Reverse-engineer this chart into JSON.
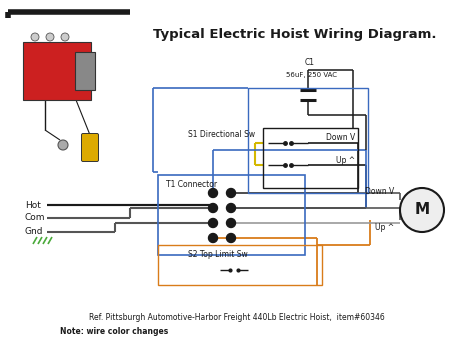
{
  "title": "Typical Electric Hoist Wiring Diagram.",
  "ref_text": "Ref. Pittsburgh Automotive-Harbor Freight 440Lb Electric Hoist,  item#60346",
  "note_text": "Note: wire color changes",
  "bg_color": "#ffffff",
  "title_fontsize": 9.5,
  "c1_label": "C1",
  "c1_sub": "56uF, 250 VAC",
  "s1_label": "S1 Directional Sw",
  "s2_label": "S2 Top Limit Sw",
  "t1_label": "T1 Connector",
  "down_v": "Down V",
  "up_v": "Up ^",
  "hot_label": "Hot",
  "com_label": "Com",
  "gnd_label": "Gnd",
  "m_label": "M",
  "colors": {
    "black": "#1a1a1a",
    "dark_gray": "#555555",
    "gray": "#999999",
    "blue": "#3a6abf",
    "orange": "#d97c1a",
    "yellow": "#d4b800",
    "green": "#4aaa3a",
    "red": "#cc2020",
    "lt_gray": "#cccccc",
    "white": "#ffffff"
  }
}
